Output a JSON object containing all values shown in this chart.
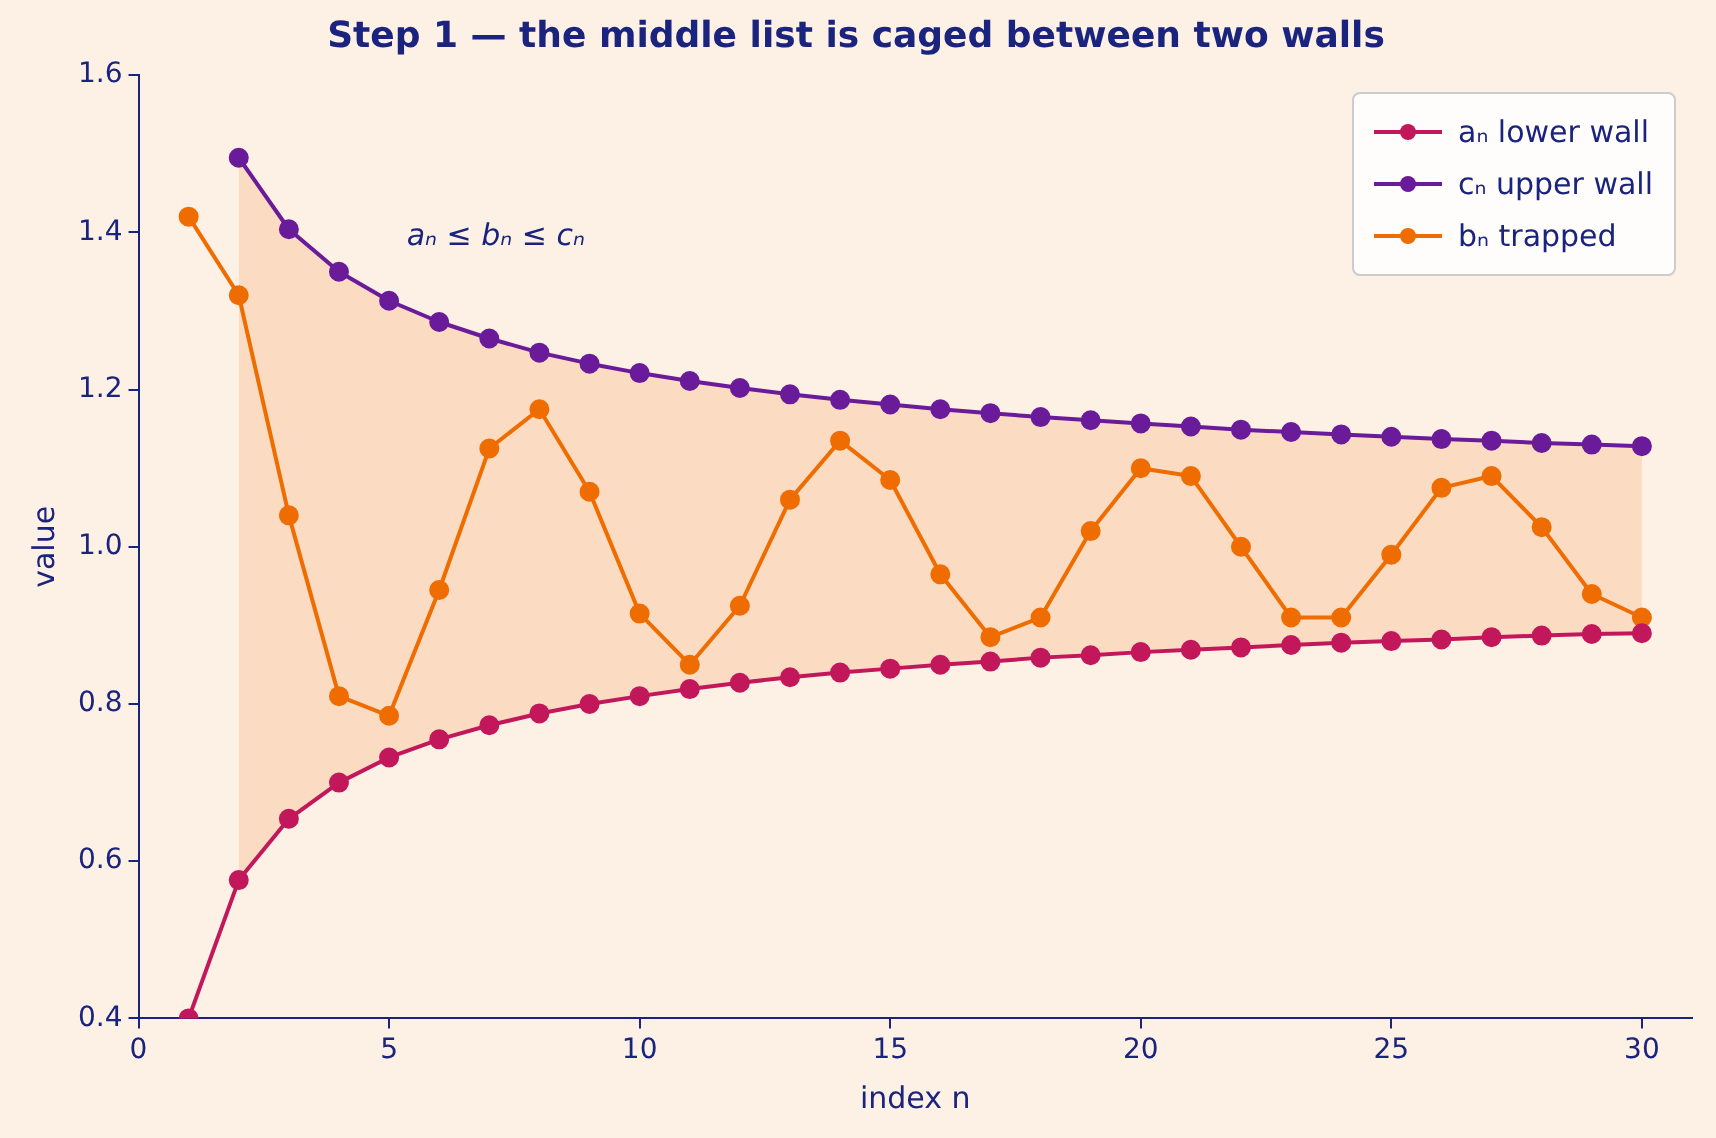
{
  "chart_data": {
    "type": "line",
    "title": "Step 1 — the middle list is caged between two walls",
    "xlabel": "index n",
    "ylabel": "value",
    "x": [
      1,
      2,
      3,
      4,
      5,
      6,
      7,
      8,
      9,
      10,
      11,
      12,
      13,
      14,
      15,
      16,
      17,
      18,
      19,
      20,
      21,
      22,
      23,
      24,
      25,
      26,
      27,
      28,
      29,
      30
    ],
    "series": [
      {
        "name": "aₙ lower wall",
        "color": "#c2185b",
        "values": [
          0.4,
          0.576,
          0.654,
          0.7,
          0.732,
          0.755,
          0.773,
          0.788,
          0.8,
          0.81,
          0.819,
          0.827,
          0.834,
          0.84,
          0.845,
          0.85,
          0.854,
          0.859,
          0.862,
          0.866,
          0.869,
          0.872,
          0.875,
          0.878,
          0.88,
          0.882,
          0.885,
          0.887,
          0.889,
          0.89
        ]
      },
      {
        "name": "cₙ upper wall",
        "color": "#6a1b9a",
        "values": [
          null,
          1.495,
          1.404,
          1.35,
          1.313,
          1.286,
          1.265,
          1.247,
          1.233,
          1.221,
          1.211,
          1.202,
          1.194,
          1.187,
          1.181,
          1.175,
          1.17,
          1.165,
          1.161,
          1.157,
          1.153,
          1.149,
          1.146,
          1.143,
          1.14,
          1.137,
          1.135,
          1.132,
          1.13,
          1.128
        ]
      },
      {
        "name": "bₙ trapped",
        "color": "#ef6c00",
        "values": [
          1.42,
          1.32,
          1.04,
          0.81,
          0.785,
          0.945,
          1.125,
          1.175,
          1.07,
          0.915,
          0.85,
          0.925,
          1.06,
          1.135,
          1.085,
          0.965,
          0.885,
          0.91,
          1.02,
          1.1,
          1.09,
          1.0,
          0.91,
          0.91,
          0.99,
          1.075,
          1.09,
          1.025,
          0.94,
          0.91
        ],
        "lower": [
          null,
          0.576,
          0.654,
          0.7,
          0.732,
          0.755,
          0.773,
          0.788,
          0.8,
          0.81,
          0.819,
          0.827,
          0.834,
          0.84,
          0.845,
          0.85,
          0.854,
          0.859,
          0.862,
          0.866,
          0.869,
          0.872,
          0.875,
          0.878,
          0.88,
          0.882,
          0.885,
          0.887,
          0.889,
          0.89
        ],
        "upper": [
          null,
          1.495,
          1.404,
          1.35,
          1.313,
          1.286,
          1.265,
          1.247,
          1.233,
          1.221,
          1.211,
          1.202,
          1.194,
          1.187,
          1.181,
          1.175,
          1.17,
          1.165,
          1.161,
          1.157,
          1.153,
          1.149,
          1.146,
          1.143,
          1.14,
          1.137,
          1.135,
          1.132,
          1.13,
          1.128
        ]
      }
    ],
    "xlim": [
      0,
      31
    ],
    "xticks": [
      0,
      5,
      10,
      15,
      20,
      25,
      30
    ],
    "ylim": [
      0.4,
      1.6
    ],
    "yticks": [
      {
        "value": 0.4,
        "label": "0.4"
      },
      {
        "value": 0.6,
        "label": "0.6"
      },
      {
        "value": 0.8,
        "label": "0.8"
      },
      {
        "value": 1.0,
        "label": "1.0"
      },
      {
        "value": 1.2,
        "label": "1.2"
      },
      {
        "value": 1.4,
        "label": "1.4"
      },
      {
        "value": 1.6,
        "label": "1.6"
      }
    ],
    "annotations": [
      "aₙ ≤ bₙ ≤ cₙ"
    ],
    "legend": "top right",
    "marker": "circle",
    "line_style": "solid",
    "grid": false
  }
}
